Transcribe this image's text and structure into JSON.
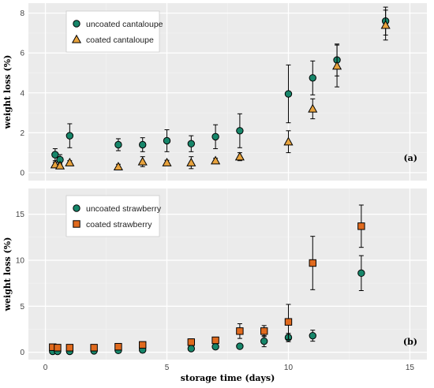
{
  "chart_data": [
    {
      "type": "scatter",
      "tag": "(a)",
      "xlabel": "",
      "ylabel": "weight loss (%)",
      "xlim": [
        -0.7,
        15.7
      ],
      "ylim": [
        -0.4,
        8.5
      ],
      "x_ticks": [
        0,
        5,
        10,
        15
      ],
      "y_ticks": [
        0,
        2,
        4,
        6,
        8
      ],
      "grid": true,
      "legend_position": "top-left",
      "series": [
        {
          "name": "uncoated cantaloupe",
          "marker": "circle",
          "color": "#17866a",
          "points": [
            {
              "x": 0.4,
              "y": 0.9,
              "err": 0.3
            },
            {
              "x": 0.6,
              "y": 0.65,
              "err": 0.25
            },
            {
              "x": 1,
              "y": 1.85,
              "err": 0.6
            },
            {
              "x": 3,
              "y": 1.4,
              "err": 0.3
            },
            {
              "x": 4,
              "y": 1.4,
              "err": 0.35
            },
            {
              "x": 5,
              "y": 1.6,
              "err": 0.55
            },
            {
              "x": 6,
              "y": 1.45,
              "err": 0.4
            },
            {
              "x": 7,
              "y": 1.8,
              "err": 0.6
            },
            {
              "x": 8,
              "y": 2.1,
              "err": 0.85
            },
            {
              "x": 10,
              "y": 3.95,
              "err": 1.45
            },
            {
              "x": 11,
              "y": 4.75,
              "err": 0.85
            },
            {
              "x": 12,
              "y": 5.65,
              "err": 0.8
            },
            {
              "x": 14,
              "y": 7.6,
              "err": 0.7
            }
          ]
        },
        {
          "name": "coated cantaloupe",
          "marker": "triangle",
          "color": "#e8a33d",
          "points": [
            {
              "x": 0.4,
              "y": 0.4,
              "err": 0.12
            },
            {
              "x": 0.6,
              "y": 0.35,
              "err": 0.12
            },
            {
              "x": 1,
              "y": 0.5,
              "err": 0.1
            },
            {
              "x": 3,
              "y": 0.3,
              "err": 0.12
            },
            {
              "x": 4,
              "y": 0.55,
              "err": 0.25
            },
            {
              "x": 5,
              "y": 0.5,
              "err": 0.12
            },
            {
              "x": 6,
              "y": 0.5,
              "err": 0.3
            },
            {
              "x": 7,
              "y": 0.6,
              "err": 0.12
            },
            {
              "x": 8,
              "y": 0.8,
              "err": 0.2
            },
            {
              "x": 10,
              "y": 1.55,
              "err": 0.55
            },
            {
              "x": 11,
              "y": 3.2,
              "err": 0.5
            },
            {
              "x": 12,
              "y": 5.35,
              "err": 1.05
            },
            {
              "x": 14,
              "y": 7.4,
              "err": 0.75
            }
          ]
        }
      ]
    },
    {
      "type": "scatter",
      "tag": "(b)",
      "xlabel": "storage time (days)",
      "ylabel": "weight loss (%)",
      "xlim": [
        -0.7,
        15.7
      ],
      "ylim": [
        -0.8,
        17.8
      ],
      "x_ticks": [
        0,
        5,
        10,
        15
      ],
      "y_ticks": [
        0,
        5,
        10,
        15
      ],
      "grid": true,
      "legend_position": "top-left",
      "series": [
        {
          "name": "uncoated strawberry",
          "marker": "circle",
          "color": "#17866a",
          "points": [
            {
              "x": 0.3,
              "y": 0.1,
              "err": 0
            },
            {
              "x": 0.5,
              "y": 0.1,
              "err": 0
            },
            {
              "x": 1,
              "y": 0.1,
              "err": 0
            },
            {
              "x": 2,
              "y": 0.15,
              "err": 0
            },
            {
              "x": 3,
              "y": 0.2,
              "err": 0
            },
            {
              "x": 4,
              "y": 0.25,
              "err": 0
            },
            {
              "x": 6,
              "y": 0.4,
              "err": 0
            },
            {
              "x": 7,
              "y": 0.6,
              "err": 0.15
            },
            {
              "x": 8,
              "y": 0.65,
              "err": 0.1
            },
            {
              "x": 9,
              "y": 1.2,
              "err": 0.6
            },
            {
              "x": 10,
              "y": 1.6,
              "err": 0.45
            },
            {
              "x": 11,
              "y": 1.8,
              "err": 0.6
            },
            {
              "x": 13,
              "y": 8.6,
              "err": 1.9
            }
          ]
        },
        {
          "name": "coated strawberry",
          "marker": "square",
          "color": "#e06a1e",
          "points": [
            {
              "x": 0.3,
              "y": 0.55,
              "err": 0.1
            },
            {
              "x": 0.5,
              "y": 0.5,
              "err": 0.1
            },
            {
              "x": 1,
              "y": 0.5,
              "err": 0.1
            },
            {
              "x": 2,
              "y": 0.5,
              "err": 0.1
            },
            {
              "x": 3,
              "y": 0.6,
              "err": 0.1
            },
            {
              "x": 4,
              "y": 0.8,
              "err": 0.1
            },
            {
              "x": 6,
              "y": 1.1,
              "err": 0.35
            },
            {
              "x": 7,
              "y": 1.3,
              "err": 0.2
            },
            {
              "x": 8,
              "y": 2.3,
              "err": 0.8
            },
            {
              "x": 9,
              "y": 2.3,
              "err": 0.6
            },
            {
              "x": 10,
              "y": 3.3,
              "err": 1.9
            },
            {
              "x": 11,
              "y": 9.7,
              "err": 2.9
            },
            {
              "x": 13,
              "y": 13.7,
              "err": 2.3
            }
          ]
        }
      ]
    }
  ],
  "colors": {
    "panel_background": "#ebebeb",
    "grid_major": "#ffffff",
    "grid_minor": "#f3f3f3",
    "marker_edge": "#000000",
    "error_bar": "#000000"
  }
}
